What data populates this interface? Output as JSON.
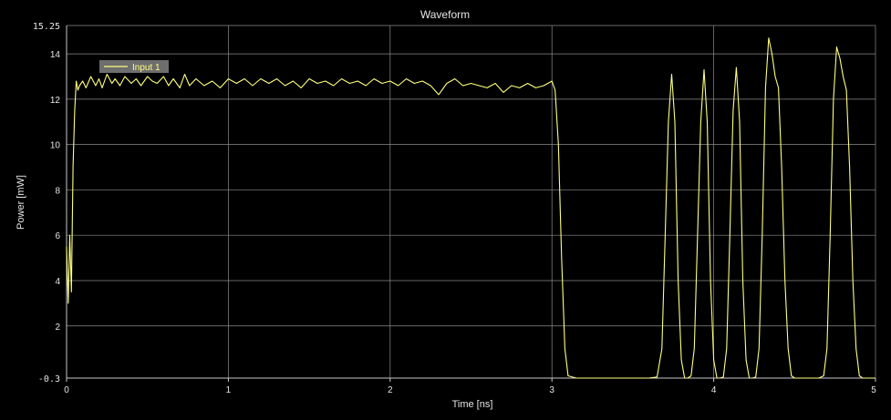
{
  "chart_data": {
    "type": "line",
    "title": "Waveform",
    "xlabel": "Time [ns]",
    "ylabel": "Power [mW]",
    "xlim": [
      0,
      5
    ],
    "ylim": [
      -0.3,
      15.25
    ],
    "x_ticks": [
      0,
      1,
      2,
      3,
      4,
      5
    ],
    "x_tick_labels": [
      "0",
      "1",
      "2",
      "3",
      "4",
      "5"
    ],
    "y_ticks": [
      -0.3,
      2,
      4,
      6,
      8,
      10,
      12,
      14,
      15.25
    ],
    "y_tick_labels": [
      "-0.3",
      "2",
      "4",
      "6",
      "8",
      "10",
      "12",
      "14",
      "15.25"
    ],
    "grid": true,
    "legend_position": "top-left",
    "colors": {
      "background": "#000000",
      "grid": "#8c8c8c",
      "series": "#ffff80",
      "axis": "#c8c8c8",
      "legend_bg": "#6e6e6e"
    },
    "series": [
      {
        "name": "Input 1",
        "x": [
          0,
          0.01,
          0.02,
          0.03,
          0.04,
          0.05,
          0.06,
          0.07,
          0.08,
          0.1,
          0.12,
          0.15,
          0.18,
          0.2,
          0.22,
          0.25,
          0.28,
          0.3,
          0.33,
          0.36,
          0.4,
          0.43,
          0.46,
          0.5,
          0.53,
          0.56,
          0.6,
          0.63,
          0.66,
          0.7,
          0.73,
          0.76,
          0.8,
          0.85,
          0.9,
          0.95,
          1.0,
          1.05,
          1.1,
          1.15,
          1.2,
          1.25,
          1.3,
          1.35,
          1.4,
          1.45,
          1.5,
          1.55,
          1.6,
          1.65,
          1.7,
          1.75,
          1.8,
          1.85,
          1.9,
          1.95,
          2.0,
          2.05,
          2.1,
          2.15,
          2.2,
          2.25,
          2.3,
          2.35,
          2.4,
          2.45,
          2.5,
          2.55,
          2.6,
          2.65,
          2.7,
          2.75,
          2.8,
          2.85,
          2.9,
          2.95,
          3.0,
          3.02,
          3.04,
          3.06,
          3.08,
          3.1,
          3.15,
          3.2,
          3.3,
          3.4,
          3.5,
          3.6,
          3.65,
          3.68,
          3.7,
          3.72,
          3.74,
          3.76,
          3.78,
          3.8,
          3.82,
          3.84,
          3.86,
          3.88,
          3.9,
          3.92,
          3.94,
          3.96,
          3.98,
          4.0,
          4.02,
          4.04,
          4.06,
          4.08,
          4.1,
          4.12,
          4.14,
          4.16,
          4.18,
          4.2,
          4.22,
          4.24,
          4.26,
          4.28,
          4.3,
          4.32,
          4.34,
          4.36,
          4.38,
          4.4,
          4.42,
          4.44,
          4.46,
          4.48,
          4.5,
          4.55,
          4.6,
          4.65,
          4.68,
          4.7,
          4.72,
          4.74,
          4.76,
          4.78,
          4.8,
          4.82,
          4.84,
          4.86,
          4.88,
          4.9,
          4.92,
          4.95,
          5.0
        ],
        "y": [
          5.5,
          3.0,
          6.0,
          3.5,
          9.0,
          11.5,
          12.8,
          12.4,
          12.6,
          12.8,
          12.5,
          13.0,
          12.6,
          12.9,
          12.5,
          13.1,
          12.7,
          12.9,
          12.6,
          13.0,
          12.7,
          12.9,
          12.6,
          13.0,
          12.8,
          12.7,
          13.0,
          12.6,
          12.9,
          12.5,
          13.1,
          12.6,
          12.9,
          12.6,
          12.8,
          12.5,
          12.9,
          12.7,
          12.9,
          12.6,
          12.9,
          12.7,
          12.9,
          12.6,
          12.8,
          12.5,
          12.9,
          12.7,
          12.8,
          12.6,
          12.9,
          12.7,
          12.8,
          12.6,
          12.9,
          12.7,
          12.8,
          12.6,
          12.9,
          12.7,
          12.8,
          12.6,
          12.2,
          12.7,
          12.9,
          12.6,
          12.7,
          12.6,
          12.5,
          12.7,
          12.3,
          12.6,
          12.5,
          12.7,
          12.5,
          12.6,
          12.8,
          12.4,
          10.0,
          5.0,
          1.0,
          -0.2,
          -0.3,
          -0.3,
          -0.3,
          -0.3,
          -0.3,
          -0.3,
          -0.25,
          1.0,
          6.0,
          11.0,
          13.1,
          11.0,
          4.0,
          0.5,
          -0.3,
          -0.3,
          -0.2,
          1.0,
          6.0,
          11.0,
          13.3,
          11.0,
          4.0,
          0.5,
          -0.3,
          -0.3,
          -0.25,
          1.0,
          6.0,
          11.5,
          13.4,
          11.0,
          4.0,
          0.5,
          -0.3,
          -0.3,
          -0.25,
          1.0,
          6.0,
          12.5,
          14.7,
          14.0,
          13.0,
          12.5,
          9.0,
          4.0,
          1.0,
          -0.2,
          -0.3,
          -0.3,
          -0.3,
          -0.3,
          -0.2,
          1.0,
          6.0,
          12.0,
          14.3,
          13.8,
          13.0,
          12.4,
          9.0,
          4.0,
          1.0,
          -0.2,
          -0.3,
          -0.3,
          -0.3
        ]
      }
    ]
  }
}
